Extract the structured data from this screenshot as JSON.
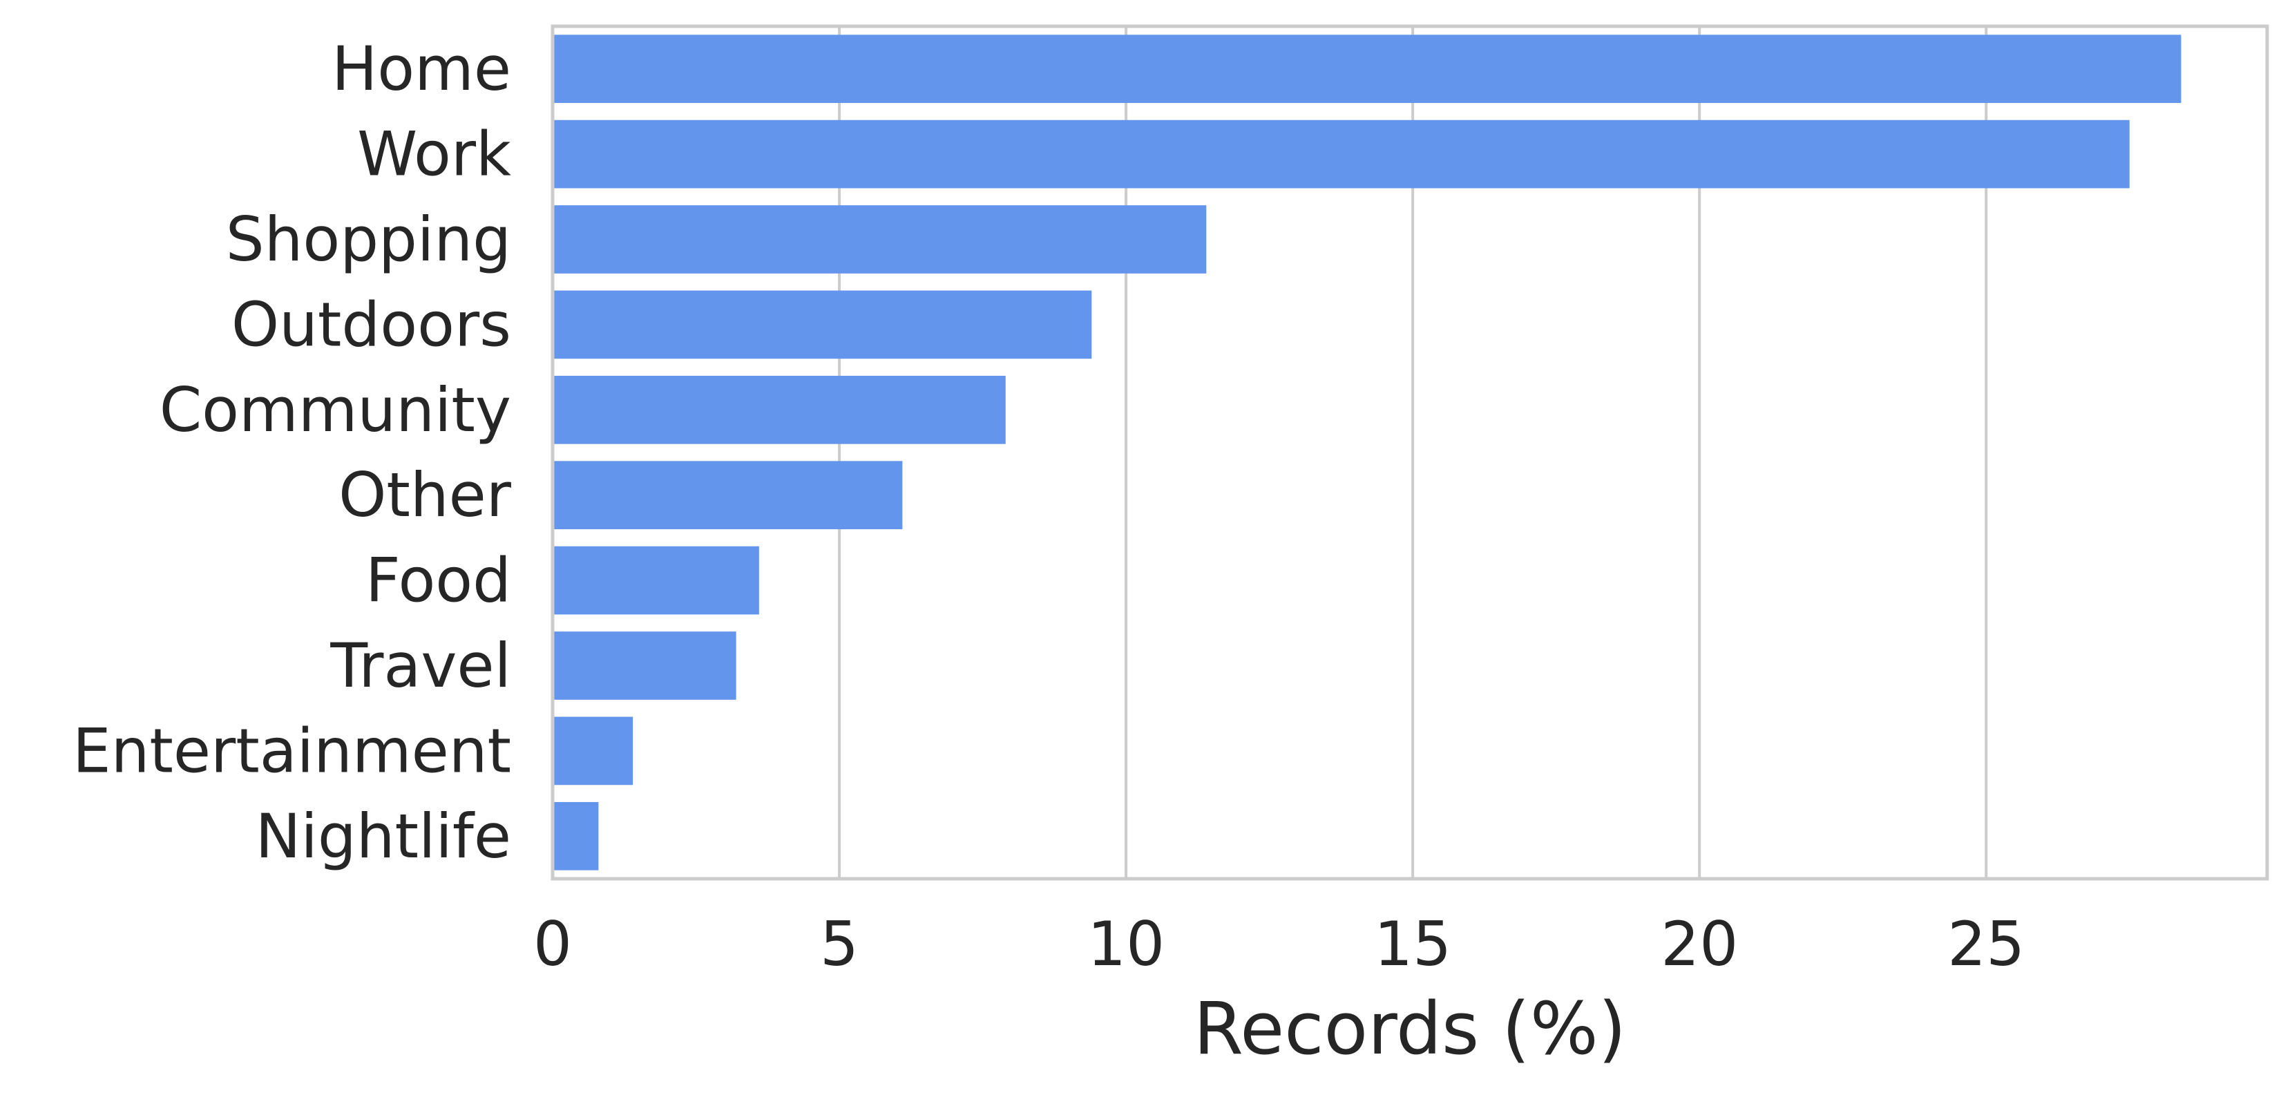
{
  "chart_data": {
    "type": "bar",
    "orientation": "horizontal",
    "categories": [
      "Home",
      "Work",
      "Shopping",
      "Outdoors",
      "Community",
      "Other",
      "Food",
      "Travel",
      "Entertainment",
      "Nightlife"
    ],
    "values": [
      28.4,
      27.5,
      11.4,
      9.4,
      7.9,
      6.1,
      3.6,
      3.2,
      1.4,
      0.8
    ],
    "xlabel": "Records (%)",
    "ylabel": "",
    "title": "",
    "xlim": [
      0,
      29.9
    ],
    "xticks": [
      0,
      5,
      10,
      15,
      20,
      25
    ],
    "grid": "vertical",
    "bar_color": "#6495ed"
  }
}
